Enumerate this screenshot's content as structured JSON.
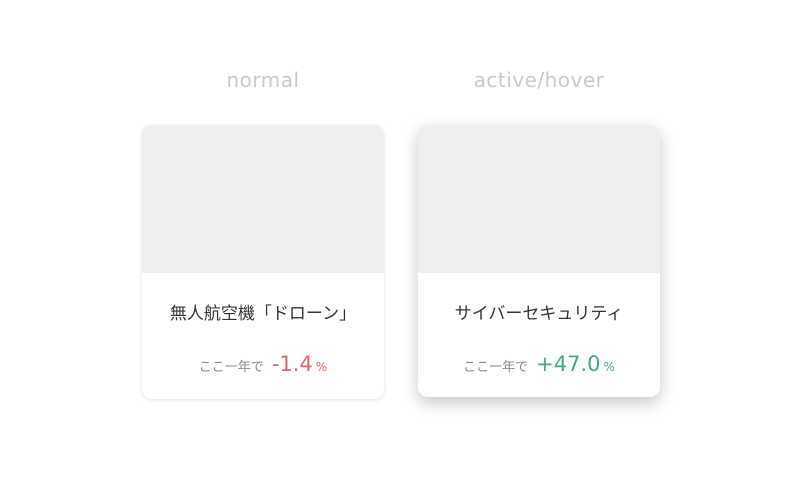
{
  "states": {
    "normal": "normal",
    "active": "active/hover"
  },
  "cards": [
    {
      "title": "無人航空機「ドローン」",
      "period": "ここ一年で",
      "value": "-1.4",
      "unit": "%",
      "color": "#e06666"
    },
    {
      "title": "サイバーセキュリティ",
      "period": "ここ一年で",
      "value": "+47.0",
      "unit": "%",
      "color": "#3dab85"
    }
  ]
}
